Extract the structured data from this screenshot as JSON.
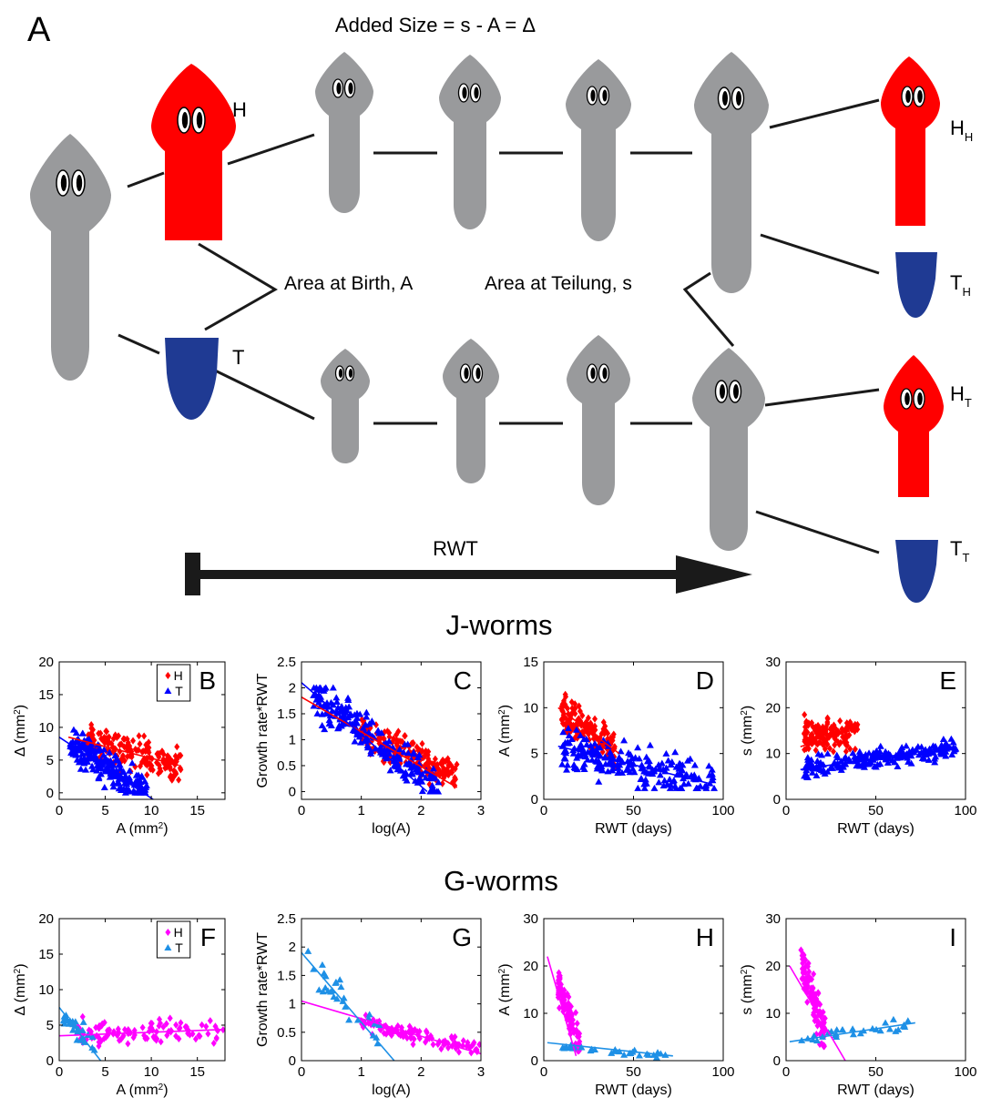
{
  "figure": {
    "panel_a": {
      "letter": "A",
      "formula": "Added Size = s - A = Δ",
      "label_h": "H",
      "label_t": "T",
      "label_birth": "Area at Birth, A",
      "label_teilung": "Area at Teilung, s",
      "label_hh": {
        "main": "H",
        "sub": "H"
      },
      "label_th": {
        "main": "T",
        "sub": "H"
      },
      "label_ht": {
        "main": "H",
        "sub": "T"
      },
      "label_tt": {
        "main": "T",
        "sub": "T"
      },
      "rwt_label": "RWT",
      "colors": {
        "worm": "#999a9c",
        "head": "#ff0000",
        "tail": "#1f3a93",
        "line": "#1a1a1a"
      }
    },
    "section_j": "J-worms",
    "section_g": "G-worms"
  },
  "chart_data": [
    {
      "panel": "B",
      "type": "scatter",
      "group": "J-worms",
      "xlabel": "A (mm²)",
      "ylabel": "Δ (mm²)",
      "xlim": [
        0,
        18
      ],
      "ylim": [
        -1,
        20
      ],
      "xticks": [
        0,
        5,
        10,
        15
      ],
      "yticks": [
        0,
        5,
        10,
        15,
        20
      ],
      "legend": {
        "position": "top-right",
        "entries": [
          "H",
          "T"
        ]
      },
      "series": [
        {
          "name": "H",
          "color": "#ff0000",
          "marker": "diamond",
          "cloud": {
            "n": 190,
            "x": [
              3,
              13.2
            ],
            "y": [
              0.2,
              13.5
            ],
            "trend": [
              [
                1,
                8.5
              ],
              [
                13,
                4.2
              ]
            ]
          }
        },
        {
          "name": "T",
          "color": "#0000ff",
          "marker": "triangle",
          "cloud": {
            "n": 210,
            "x": [
              1.2,
              9.5
            ],
            "y": [
              0,
              13.2
            ],
            "trend": [
              [
                0,
                8.5
              ],
              [
                8,
                1.5
              ]
            ]
          }
        }
      ],
      "fits": [
        {
          "series": "H",
          "color": "#ff0000",
          "points": [
            [
              1,
              8.5
            ],
            [
              13,
              4.2
            ]
          ]
        },
        {
          "series": "T",
          "color": "#0000ff",
          "points": [
            [
              0,
              8.5
            ],
            [
              10.2,
              -1
            ]
          ]
        }
      ]
    },
    {
      "panel": "C",
      "type": "scatter",
      "group": "J-worms",
      "xlabel": "log(A)",
      "ylabel": "Growth rate*RWT",
      "xlim": [
        0,
        3
      ],
      "ylim": [
        -0.15,
        2.5
      ],
      "xticks": [
        0,
        1,
        2,
        3
      ],
      "yticks": [
        0,
        0.5,
        1,
        1.5,
        2,
        2.5
      ],
      "series": [
        {
          "name": "H",
          "color": "#ff0000",
          "marker": "diamond",
          "cloud": {
            "n": 190,
            "x": [
              1,
              2.6
            ],
            "y": [
              0,
              1.5
            ],
            "trend": [
              [
                1,
                1.15
              ],
              [
                2.6,
                0.3
              ]
            ]
          }
        },
        {
          "name": "T",
          "color": "#0000ff",
          "marker": "triangle",
          "cloud": {
            "n": 210,
            "x": [
              0.2,
              2.3
            ],
            "y": [
              0,
              2
            ],
            "trend": [
              [
                0.3,
                1.8
              ],
              [
                2.2,
                0.15
              ]
            ]
          }
        }
      ],
      "fits": [
        {
          "series": "H",
          "color": "#ff0000",
          "points": [
            [
              0,
              1.82
            ],
            [
              2.6,
              0.08
            ]
          ]
        },
        {
          "series": "T",
          "color": "#0000ff",
          "points": [
            [
              0,
              2.1
            ],
            [
              2.1,
              0
            ]
          ]
        }
      ]
    },
    {
      "panel": "D",
      "type": "scatter",
      "group": "J-worms",
      "xlabel": "RWT (days)",
      "ylabel": "A (mm²)",
      "xlim": [
        0,
        100
      ],
      "ylim": [
        0,
        15
      ],
      "xticks": [
        0,
        50,
        100
      ],
      "yticks": [
        0,
        5,
        10,
        15
      ],
      "series": [
        {
          "name": "H",
          "color": "#ff0000",
          "marker": "diamond",
          "cloud": {
            "n": 150,
            "x": [
              10,
              40
            ],
            "y": [
              3.5,
              13.5
            ],
            "trend": [
              [
                10,
                9.5
              ],
              [
                40,
                5.5
              ]
            ]
          }
        },
        {
          "name": "T",
          "color": "#0000ff",
          "marker": "triangle",
          "cloud": {
            "n": 220,
            "x": [
              10,
              95
            ],
            "y": [
              1.2,
              12.5
            ],
            "trend": [
              [
                10,
                5.5
              ],
              [
                90,
                1.8
              ]
            ]
          }
        }
      ],
      "fits": [
        {
          "series": "H",
          "color": "#ff0000",
          "points": [
            [
              8,
              10
            ],
            [
              42,
              5
            ]
          ]
        },
        {
          "series": "T",
          "color": "#0000ff",
          "points": [
            [
              8,
              5.8
            ],
            [
              93,
              1.7
            ]
          ]
        }
      ]
    },
    {
      "panel": "E",
      "type": "scatter",
      "group": "J-worms",
      "xlabel": "RWT (days)",
      "ylabel": "s (mm²)",
      "xlim": [
        0,
        100
      ],
      "ylim": [
        0,
        30
      ],
      "xticks": [
        0,
        50,
        100
      ],
      "yticks": [
        0,
        10,
        20,
        30
      ],
      "series": [
        {
          "name": "H",
          "color": "#ff0000",
          "marker": "diamond",
          "cloud": {
            "n": 150,
            "x": [
              10,
              40
            ],
            "y": [
              5,
              22.5
            ],
            "trend": [
              [
                10,
                14
              ],
              [
                40,
                14
              ]
            ]
          }
        },
        {
          "name": "T",
          "color": "#0000ff",
          "marker": "triangle",
          "cloud": {
            "n": 220,
            "x": [
              10,
              95
            ],
            "y": [
              4,
              15
            ],
            "trend": [
              [
                10,
                7
              ],
              [
                90,
                11
              ]
            ]
          }
        }
      ],
      "fits": [
        {
          "series": "H",
          "color": "#ff0000",
          "points": [
            [
              8,
              11.5
            ],
            [
              40,
              15.5
            ]
          ]
        },
        {
          "series": "T",
          "color": "#0000ff",
          "points": [
            [
              8,
              6.5
            ],
            [
              93,
              11.5
            ]
          ]
        }
      ]
    },
    {
      "panel": "F",
      "type": "scatter",
      "group": "G-worms",
      "xlabel": "A (mm²)",
      "ylabel": "Δ (mm²)",
      "xlim": [
        0,
        18
      ],
      "ylim": [
        0,
        20
      ],
      "xticks": [
        0,
        5,
        10,
        15
      ],
      "yticks": [
        0,
        5,
        10,
        15,
        20
      ],
      "legend": {
        "position": "top-right",
        "entries": [
          "H",
          "T"
        ]
      },
      "series": [
        {
          "name": "H",
          "color": "#ff00ff",
          "marker": "diamond",
          "cloud": {
            "n": 110,
            "x": [
              2,
              18
            ],
            "y": [
              0.5,
              9.3
            ],
            "trend": [
              [
                2,
                3.8
              ],
              [
                18,
                4.3
              ]
            ]
          }
        },
        {
          "name": "T",
          "color": "#1e90e6",
          "marker": "triangle",
          "cloud": {
            "n": 30,
            "x": [
              0.5,
              4
            ],
            "y": [
              0.5,
              8.5
            ],
            "trend": [
              [
                0.5,
                6
              ],
              [
                4,
                1.5
              ]
            ]
          }
        }
      ],
      "fits": [
        {
          "series": "H",
          "color": "#ff00ff",
          "points": [
            [
              0,
              3.5
            ],
            [
              18,
              4.4
            ]
          ]
        },
        {
          "series": "T",
          "color": "#1e90e6",
          "points": [
            [
              0,
              7.5
            ],
            [
              4.5,
              0
            ]
          ]
        }
      ]
    },
    {
      "panel": "G",
      "type": "scatter",
      "group": "G-worms",
      "xlabel": "log(A)",
      "ylabel": "Growth rate*RWT",
      "xlim": [
        0,
        3
      ],
      "ylim": [
        0,
        2.5
      ],
      "xticks": [
        0,
        1,
        2,
        3
      ],
      "yticks": [
        0,
        0.5,
        1,
        1.5,
        2,
        2.5
      ],
      "series": [
        {
          "name": "H",
          "color": "#ff00ff",
          "marker": "diamond",
          "cloud": {
            "n": 110,
            "x": [
              1,
              3
            ],
            "y": [
              0.05,
              0.8
            ],
            "trend": [
              [
                1,
                0.65
              ],
              [
                3,
                0.2
              ]
            ]
          }
        },
        {
          "name": "T",
          "color": "#1e90e6",
          "marker": "triangle",
          "cloud": {
            "n": 30,
            "x": [
              0.1,
              1.3
            ],
            "y": [
              0.3,
              2
            ],
            "trend": [
              [
                0.1,
                1.7
              ],
              [
                1.3,
                0.4
              ]
            ]
          }
        }
      ],
      "fits": [
        {
          "series": "H",
          "color": "#ff00ff",
          "points": [
            [
              0,
              1.05
            ],
            [
              3,
              0.12
            ]
          ]
        },
        {
          "series": "T",
          "color": "#1e90e6",
          "points": [
            [
              0,
              1.9
            ],
            [
              1.55,
              0
            ]
          ]
        }
      ]
    },
    {
      "panel": "H",
      "type": "scatter",
      "group": "G-worms",
      "xlabel": "RWT (days)",
      "ylabel": "A (mm²)",
      "xlim": [
        0,
        100
      ],
      "ylim": [
        0,
        30
      ],
      "xticks": [
        0,
        50,
        100
      ],
      "yticks": [
        0,
        10,
        20,
        30
      ],
      "series": [
        {
          "name": "H",
          "color": "#ff00ff",
          "marker": "diamond",
          "cloud": {
            "n": 110,
            "x": [
              8,
              20
            ],
            "y": [
              2,
              21
            ],
            "trend": [
              [
                8,
                16
              ],
              [
                20,
                3
              ]
            ]
          }
        },
        {
          "name": "T",
          "color": "#1e90e6",
          "marker": "triangle",
          "cloud": {
            "n": 30,
            "x": [
              10,
              72
            ],
            "y": [
              0.5,
              4
            ],
            "trend": [
              [
                10,
                3
              ],
              [
                72,
                1
              ]
            ]
          }
        }
      ],
      "fits": [
        {
          "series": "H",
          "color": "#ff00ff",
          "points": [
            [
              2,
              22
            ],
            [
              18,
              1
            ]
          ]
        },
        {
          "series": "T",
          "color": "#1e90e6",
          "points": [
            [
              2,
              3.8
            ],
            [
              72,
              1
            ]
          ]
        }
      ]
    },
    {
      "panel": "I",
      "type": "scatter",
      "group": "G-worms",
      "xlabel": "RWT (days)",
      "ylabel": "s (mm²)",
      "xlim": [
        0,
        100
      ],
      "ylim": [
        0,
        30
      ],
      "xticks": [
        0,
        50,
        100
      ],
      "yticks": [
        0,
        10,
        20,
        30
      ],
      "series": [
        {
          "name": "H",
          "color": "#ff00ff",
          "marker": "diamond",
          "cloud": {
            "n": 110,
            "x": [
              8,
              22
            ],
            "y": [
              3,
              26
            ],
            "trend": [
              [
                8,
                21
              ],
              [
                22,
                5
              ]
            ]
          }
        },
        {
          "name": "T",
          "color": "#1e90e6",
          "marker": "triangle",
          "cloud": {
            "n": 30,
            "x": [
              8,
              72
            ],
            "y": [
              3.5,
              10
            ],
            "trend": [
              [
                8,
                4.5
              ],
              [
                72,
                8
              ]
            ]
          }
        }
      ],
      "fits": [
        {
          "series": "H",
          "color": "#ff00ff",
          "points": [
            [
              2,
              20
            ],
            [
              33,
              0
            ]
          ]
        },
        {
          "series": "T",
          "color": "#1e90e6",
          "points": [
            [
              2,
              4
            ],
            [
              72,
              8
            ]
          ]
        }
      ]
    }
  ]
}
